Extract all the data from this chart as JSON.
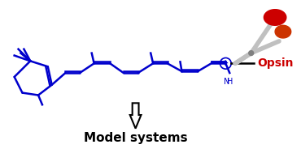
{
  "bg_color": "#ffffff",
  "mol_color": "#0000cc",
  "opsin_color": "#cc0000",
  "scissors_body": "#c0c0c0",
  "scissors_handle1": "#cc0000",
  "scissors_handle2": "#cc2200",
  "arrow_color": "#000000",
  "text_model": "Model systems",
  "text_opsin": "Opsin",
  "text_font_model": 11,
  "text_font_opsin": 10,
  "figsize": [
    3.7,
    1.89
  ],
  "dpi": 100
}
